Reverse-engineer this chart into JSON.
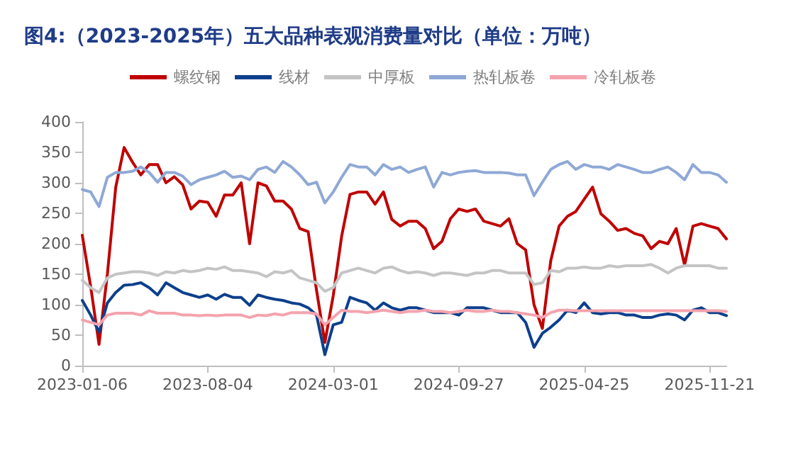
{
  "chart_data": {
    "type": "line",
    "title": "图4:（2023-2025年）五大品种表观消费量对比（单位：万吨）",
    "x": [
      "2023-01-06",
      "2023-01-20",
      "2023-02-03",
      "2023-02-17",
      "2023-03-03",
      "2023-03-17",
      "2023-03-31",
      "2023-04-14",
      "2023-04-28",
      "2023-05-12",
      "2023-05-26",
      "2023-06-09",
      "2023-06-23",
      "2023-07-07",
      "2023-07-21",
      "2023-08-04",
      "2023-08-18",
      "2023-09-01",
      "2023-09-15",
      "2023-09-29",
      "2023-10-13",
      "2023-10-27",
      "2023-11-10",
      "2023-11-24",
      "2023-12-08",
      "2023-12-22",
      "2024-01-05",
      "2024-01-19",
      "2024-02-02",
      "2024-02-16",
      "2024-03-01",
      "2024-03-15",
      "2024-03-29",
      "2024-04-12",
      "2024-04-26",
      "2024-05-10",
      "2024-05-24",
      "2024-06-07",
      "2024-06-21",
      "2024-07-05",
      "2024-07-19",
      "2024-08-02",
      "2024-08-16",
      "2024-08-30",
      "2024-09-13",
      "2024-09-27",
      "2024-10-11",
      "2024-10-25",
      "2024-11-08",
      "2024-11-22",
      "2024-12-06",
      "2024-12-20",
      "2025-01-03",
      "2025-01-17",
      "2025-01-31",
      "2025-02-14",
      "2025-02-28",
      "2025-03-14",
      "2025-03-28",
      "2025-04-11",
      "2025-04-25",
      "2025-05-09",
      "2025-05-23",
      "2025-06-06",
      "2025-06-20",
      "2025-07-04",
      "2025-07-18",
      "2025-08-01",
      "2025-08-15",
      "2025-08-29",
      "2025-09-12",
      "2025-09-26",
      "2025-10-10",
      "2025-10-24",
      "2025-11-07",
      "2025-11-21",
      "2025-12-05",
      "2025-12-19"
    ],
    "series": [
      {
        "name": "螺纹钢",
        "color": "#c00000",
        "values": [
          214,
          130,
          35,
          150,
          293,
          358,
          334,
          313,
          330,
          330,
          300,
          310,
          297,
          257,
          270,
          268,
          245,
          280,
          280,
          300,
          200,
          300,
          295,
          270,
          270,
          257,
          225,
          220,
          124,
          38,
          115,
          212,
          281,
          285,
          285,
          265,
          285,
          240,
          229,
          237,
          237,
          225,
          192,
          204,
          241,
          257,
          253,
          257,
          237,
          233,
          229,
          241,
          200,
          190,
          100,
          61,
          172,
          229,
          245,
          253,
          273,
          293,
          249,
          237,
          222,
          225,
          217,
          213,
          192,
          204,
          200,
          225,
          165,
          229,
          233,
          229,
          225,
          208
        ]
      },
      {
        "name": "线材",
        "color": "#0d3f8c",
        "values": [
          107,
          83,
          55,
          103,
          120,
          132,
          133,
          136,
          128,
          116,
          136,
          128,
          120,
          116,
          112,
          116,
          109,
          117,
          112,
          112,
          99,
          116,
          112,
          109,
          107,
          103,
          101,
          95,
          83,
          18,
          67,
          71,
          112,
          107,
          103,
          91,
          103,
          95,
          91,
          95,
          95,
          91,
          87,
          87,
          87,
          83,
          95,
          95,
          95,
          91,
          87,
          87,
          87,
          71,
          30,
          53,
          63,
          75,
          91,
          87,
          103,
          87,
          85,
          87,
          87,
          83,
          83,
          79,
          79,
          83,
          85,
          83,
          75,
          91,
          95,
          87,
          87,
          82
        ]
      },
      {
        "name": "中厚板",
        "color": "#c4c4c4",
        "values": [
          140,
          128,
          120,
          144,
          150,
          152,
          154,
          154,
          152,
          148,
          154,
          152,
          156,
          154,
          156,
          160,
          158,
          162,
          156,
          156,
          154,
          152,
          146,
          154,
          152,
          156,
          144,
          140,
          136,
          122,
          128,
          152,
          156,
          160,
          156,
          152,
          160,
          162,
          156,
          152,
          154,
          152,
          148,
          152,
          152,
          150,
          148,
          152,
          152,
          156,
          156,
          152,
          152,
          152,
          133,
          136,
          156,
          154,
          160,
          160,
          162,
          160,
          160,
          164,
          162,
          164,
          164,
          164,
          166,
          160,
          152,
          160,
          164,
          164,
          164,
          164,
          160,
          160
        ]
      },
      {
        "name": "热轧板卷",
        "color": "#8fa8d6",
        "values": [
          289,
          285,
          261,
          309,
          317,
          317,
          319,
          326,
          317,
          301,
          317,
          317,
          311,
          297,
          305,
          309,
          313,
          319,
          309,
          311,
          305,
          322,
          326,
          317,
          335,
          326,
          313,
          297,
          301,
          267,
          285,
          309,
          330,
          326,
          326,
          313,
          330,
          322,
          326,
          317,
          322,
          326,
          293,
          317,
          313,
          317,
          319,
          320,
          317,
          317,
          317,
          316,
          313,
          313,
          279,
          301,
          322,
          330,
          335,
          322,
          330,
          326,
          326,
          322,
          330,
          326,
          322,
          317,
          317,
          322,
          326,
          317,
          305,
          330,
          317,
          317,
          313,
          301
        ]
      },
      {
        "name": "冷轧板卷",
        "color": "#f4a3ad",
        "values": [
          75,
          71,
          67,
          83,
          86,
          86,
          86,
          83,
          90,
          86,
          86,
          86,
          83,
          83,
          82,
          83,
          82,
          83,
          83,
          83,
          79,
          83,
          82,
          85,
          83,
          87,
          87,
          87,
          85,
          67,
          79,
          91,
          89,
          89,
          87,
          89,
          91,
          89,
          87,
          89,
          89,
          91,
          89,
          89,
          87,
          89,
          91,
          89,
          89,
          91,
          89,
          89,
          87,
          85,
          83,
          79,
          87,
          91,
          91,
          90,
          90,
          90,
          90,
          90,
          90,
          90,
          90,
          90,
          90,
          90,
          90,
          90,
          90,
          90,
          90,
          90,
          90,
          89
        ]
      }
    ],
    "xlim": [
      "2023-01-06",
      "2025-12-19"
    ],
    "xticks": [
      "2023-01-06",
      "2023-08-04",
      "2024-03-01",
      "2024-09-27",
      "2025-04-25",
      "2025-11-21"
    ],
    "ylim": [
      0,
      400
    ],
    "yticks": [
      0,
      50,
      100,
      150,
      200,
      250,
      300,
      350,
      400
    ],
    "legend": "top",
    "marker": "none",
    "line_style": "solid"
  }
}
